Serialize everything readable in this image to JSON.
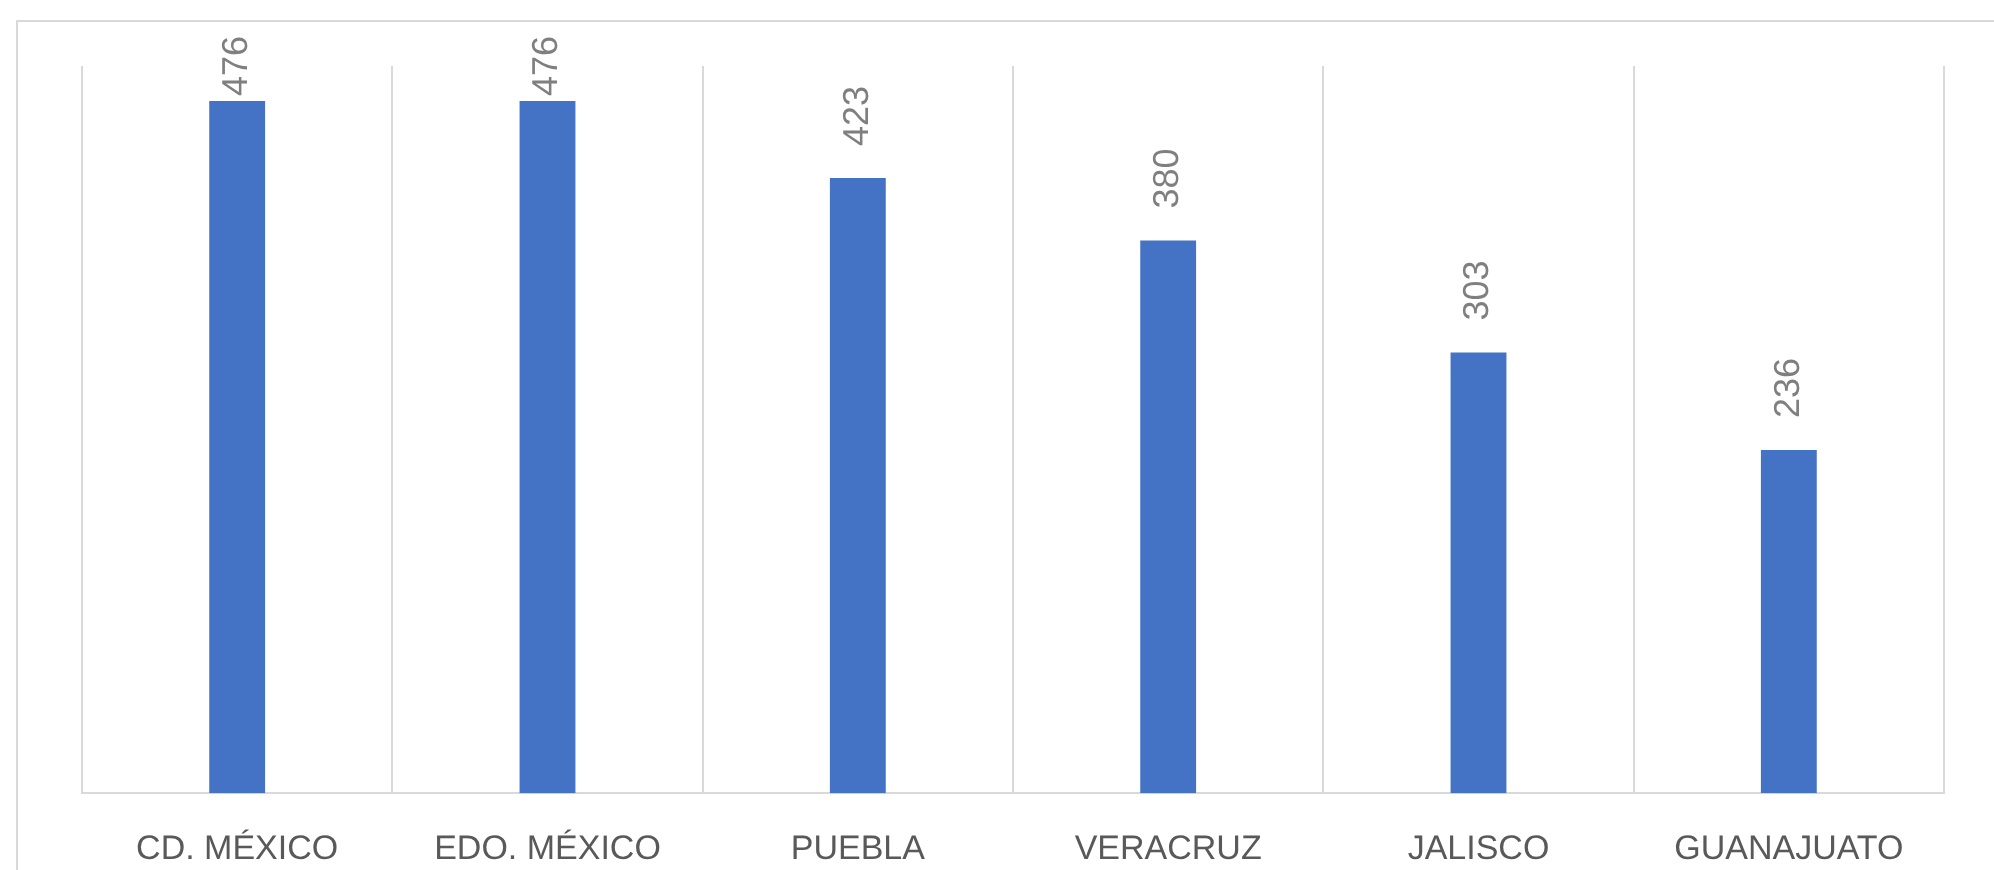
{
  "chart_data": {
    "type": "bar",
    "categories": [
      "CD. MÉXICO",
      "EDO. MÉXICO",
      "PUEBLA",
      "VERACRUZ",
      "JALISCO",
      "GUANAJUATO"
    ],
    "values": [
      476,
      476,
      423,
      380,
      303,
      236
    ],
    "color": "#4472c4",
    "data_labels": true,
    "grid": "x",
    "tick_labels": "x"
  }
}
